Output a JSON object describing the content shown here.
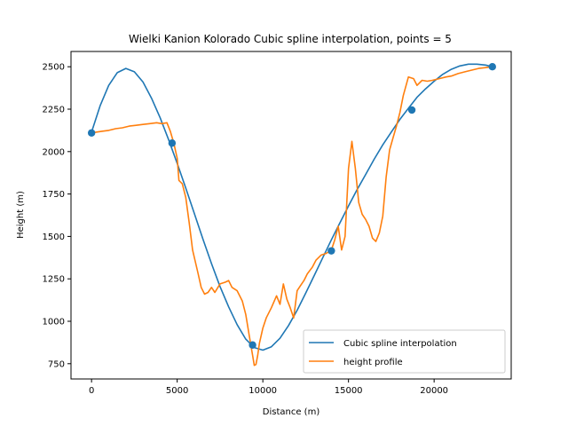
{
  "chart_data": {
    "type": "line",
    "title": "Wielki Kanion Kolorado Cubic spline interpolation, points = 5",
    "xlabel": "Distance (m)",
    "ylabel": "Height (m)",
    "xlim": [
      -1200,
      24500
    ],
    "ylim": [
      660,
      2590
    ],
    "xticks": [
      0,
      5000,
      10000,
      15000,
      20000
    ],
    "yticks": [
      750,
      1000,
      1250,
      1500,
      1750,
      2000,
      2250,
      2500
    ],
    "grid": false,
    "legend_position": "lower-right",
    "colors": {
      "spline": "#1f77b4",
      "profile": "#ff7f0e",
      "points": "#1f77b4"
    },
    "series": [
      {
        "name": "Cubic spline interpolation",
        "kind": "line",
        "x": [
          0,
          500,
          1000,
          1500,
          2000,
          2500,
          3000,
          3500,
          4000,
          4500,
          5000,
          5500,
          6000,
          6500,
          7000,
          7500,
          8000,
          8500,
          9000,
          9500,
          10000,
          10500,
          11000,
          11500,
          12000,
          12500,
          13000,
          13500,
          14000,
          14500,
          15000,
          15500,
          16000,
          16500,
          17000,
          17500,
          18000,
          18500,
          19000,
          19500,
          20000,
          20500,
          21000,
          21500,
          22000,
          22500,
          23000,
          23400
        ],
        "y": [
          2115,
          2270,
          2390,
          2465,
          2490,
          2470,
          2410,
          2315,
          2200,
          2070,
          1930,
          1785,
          1635,
          1485,
          1340,
          1205,
          1085,
          980,
          895,
          845,
          830,
          850,
          900,
          975,
          1065,
          1165,
          1270,
          1375,
          1480,
          1580,
          1680,
          1775,
          1865,
          1955,
          2040,
          2115,
          2190,
          2255,
          2320,
          2370,
          2415,
          2455,
          2485,
          2505,
          2515,
          2515,
          2510,
          2500
        ]
      },
      {
        "name": "height profile",
        "kind": "line",
        "x": [
          0,
          300,
          600,
          1000,
          1400,
          1800,
          2200,
          2600,
          3000,
          3400,
          3800,
          4100,
          4400,
          4600,
          4800,
          5000,
          5100,
          5300,
          5500,
          5700,
          5900,
          6200,
          6400,
          6600,
          6800,
          7000,
          7200,
          7500,
          7800,
          8000,
          8200,
          8500,
          8800,
          9000,
          9200,
          9400,
          9500,
          9600,
          9700,
          9800,
          10000,
          10200,
          10500,
          10800,
          11000,
          11200,
          11400,
          11600,
          11800,
          12000,
          12200,
          12400,
          12600,
          12900,
          13100,
          13400,
          13700,
          14000,
          14200,
          14400,
          14600,
          14800,
          15000,
          15200,
          15400,
          15600,
          15800,
          16000,
          16200,
          16400,
          16600,
          16800,
          17000,
          17200,
          17400,
          17600,
          17800,
          18000,
          18200,
          18500,
          18800,
          19000,
          19300,
          19600,
          19900,
          20300,
          20700,
          21000,
          21400,
          21800,
          22200,
          22600,
          23000,
          23400
        ],
        "y": [
          2110,
          2115,
          2120,
          2125,
          2135,
          2140,
          2150,
          2155,
          2160,
          2165,
          2170,
          2165,
          2170,
          2120,
          2050,
          1960,
          1830,
          1810,
          1730,
          1580,
          1420,
          1290,
          1200,
          1160,
          1170,
          1200,
          1170,
          1220,
          1230,
          1240,
          1200,
          1180,
          1120,
          1040,
          920,
          800,
          740,
          745,
          800,
          870,
          960,
          1020,
          1080,
          1150,
          1100,
          1220,
          1130,
          1080,
          1020,
          1180,
          1210,
          1240,
          1280,
          1320,
          1360,
          1390,
          1400,
          1420,
          1480,
          1560,
          1420,
          1500,
          1900,
          2060,
          1900,
          1700,
          1630,
          1600,
          1560,
          1490,
          1470,
          1520,
          1620,
          1850,
          2010,
          2080,
          2150,
          2230,
          2330,
          2440,
          2430,
          2390,
          2420,
          2415,
          2420,
          2430,
          2440,
          2445,
          2460,
          2470,
          2480,
          2490,
          2495,
          2500
        ]
      },
      {
        "name": "",
        "kind": "scatter",
        "x": [
          0,
          4700,
          9400,
          14000,
          18700,
          23400
        ],
        "y": [
          2110,
          2050,
          860,
          1415,
          2245,
          2500
        ]
      }
    ],
    "legend": [
      "Cubic spline interpolation",
      "height profile"
    ]
  }
}
